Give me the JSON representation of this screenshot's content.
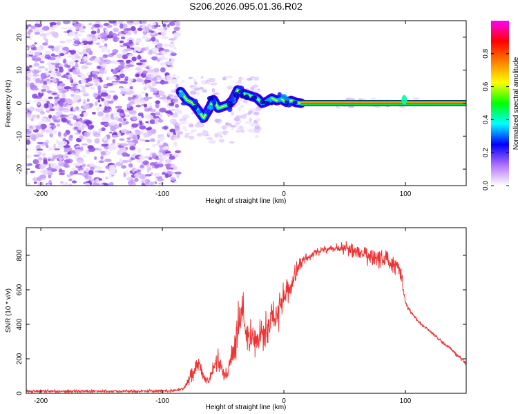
{
  "figure": {
    "title": "S206.2026.095.01.36.R02"
  },
  "chart_data": [
    {
      "type": "heatmap",
      "title": "",
      "xlabel": "Height of straight line (km)",
      "ylabel": "Frequency (Hz)",
      "xlim": [
        -212,
        150
      ],
      "ylim": [
        -25,
        25
      ],
      "xticks": [
        -200,
        -100,
        0,
        100
      ],
      "yticks": [
        -20,
        -10,
        0,
        10,
        20
      ],
      "noise_region_km": [
        -212,
        -87
      ],
      "ridge_profile": [
        {
          "x": -85,
          "f": 3.5
        },
        {
          "x": -80,
          "f": 1.0
        },
        {
          "x": -75,
          "f": 0.0
        },
        {
          "x": -70,
          "f": -2.5
        },
        {
          "x": -66,
          "f": -4.5
        },
        {
          "x": -62,
          "f": -2.0
        },
        {
          "x": -58,
          "f": 1.0
        },
        {
          "x": -54,
          "f": -1.5
        },
        {
          "x": -50,
          "f": -1.0
        },
        {
          "x": -46,
          "f": -0.5
        },
        {
          "x": -42,
          "f": 1.0
        },
        {
          "x": -38,
          "f": 4.0
        },
        {
          "x": -34,
          "f": 3.0
        },
        {
          "x": -30,
          "f": 2.5
        },
        {
          "x": -26,
          "f": 2.0
        },
        {
          "x": -22,
          "f": 1.5
        },
        {
          "x": -18,
          "f": 0.0
        },
        {
          "x": -14,
          "f": 0.5
        },
        {
          "x": -10,
          "f": 1.5
        },
        {
          "x": -6,
          "f": 0.8
        },
        {
          "x": -2,
          "f": 1.2
        },
        {
          "x": 2,
          "f": 0.3
        },
        {
          "x": 6,
          "f": 0.8
        },
        {
          "x": 10,
          "f": 0.2
        },
        {
          "x": 14,
          "f": 0.0
        },
        {
          "x": 150,
          "f": 0.0
        }
      ],
      "colorbar": {
        "label": "Normalized spectral amplitude",
        "ticks": [
          0.0,
          0.2,
          0.4,
          0.6,
          0.8
        ],
        "tick_labels": [
          "0.0",
          "0.2",
          "0.4",
          "0.6",
          "0.8"
        ],
        "range": [
          0,
          1
        ],
        "colors": [
          "#ffffff",
          "#b070ff",
          "#0000ff",
          "#00ffff",
          "#00ff00",
          "#ffff00",
          "#ff8000",
          "#ff0000",
          "#ff00ff"
        ]
      }
    },
    {
      "type": "line",
      "title": "",
      "xlabel": "Height of straight line (km)",
      "ylabel": "SNR (10 * v/v)",
      "xlim": [
        -212,
        150
      ],
      "ylim": [
        0,
        960
      ],
      "xticks": [
        -200,
        -100,
        0,
        100
      ],
      "yticks": [
        0,
        200,
        400,
        600,
        800
      ],
      "series": [
        {
          "name": "SNR",
          "color": "#ee3333",
          "x": [
            -212,
            -180,
            -150,
            -120,
            -90,
            -82,
            -76,
            -70,
            -66,
            -62,
            -58,
            -54,
            -50,
            -46,
            -42,
            -38,
            -34,
            -30,
            -26,
            -22,
            -18,
            -14,
            -10,
            -6,
            -2,
            2,
            6,
            10,
            14,
            20,
            26,
            32,
            40,
            50,
            60,
            70,
            80,
            90,
            96,
            100,
            104,
            110,
            120,
            130,
            140,
            146,
            150
          ],
          "mean": [
            12,
            12,
            12,
            12,
            14,
            30,
            110,
            180,
            90,
            60,
            160,
            200,
            120,
            120,
            250,
            360,
            480,
            300,
            340,
            280,
            330,
            350,
            420,
            470,
            520,
            600,
            620,
            700,
            760,
            790,
            820,
            830,
            840,
            840,
            820,
            800,
            780,
            760,
            720,
            520,
            480,
            420,
            360,
            300,
            240,
            200,
            170
          ],
          "noise": [
            10,
            10,
            10,
            10,
            10,
            12,
            60,
            60,
            30,
            25,
            60,
            70,
            40,
            45,
            120,
            160,
            150,
            100,
            120,
            110,
            130,
            120,
            110,
            110,
            110,
            80,
            70,
            60,
            40,
            30,
            25,
            25,
            25,
            40,
            60,
            70,
            80,
            70,
            60,
            20,
            15,
            12,
            10,
            12,
            15,
            15,
            15
          ]
        }
      ]
    }
  ]
}
